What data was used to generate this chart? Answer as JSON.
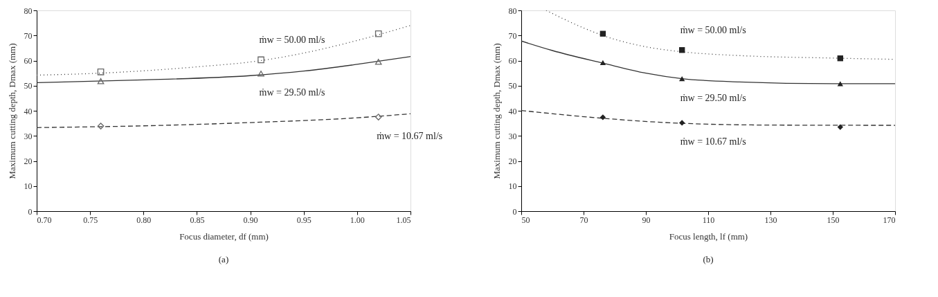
{
  "chart_data": [
    {
      "type": "scatter",
      "xlabel": "Focus diameter, df (mm)",
      "ylabel": "Maximum cutting depth, Dmax (mm)",
      "xlim": [
        0.7,
        1.05
      ],
      "xticks": [
        {
          "value": 0.7,
          "label": "0.70"
        },
        0.75,
        {
          "value": 0.8,
          "label": "0.80"
        },
        0.85,
        {
          "value": 0.9,
          "label": "0.90"
        },
        0.95,
        {
          "value": 1,
          "label": "1.00"
        },
        1.05
      ],
      "ylim": [
        0,
        80
      ],
      "yticks": [
        0,
        10,
        20,
        30,
        40,
        50,
        60,
        70,
        80
      ],
      "grid": false,
      "series": [
        {
          "type": "line",
          "line_style": "dotted",
          "color": "#333333",
          "x": [
            0.7,
            0.76,
            0.85,
            0.91,
            0.95,
            1.0,
            1.05
          ],
          "values": [
            54.2,
            55,
            57.5,
            60,
            63,
            68,
            74
          ]
        },
        {
          "type": "line",
          "line_style": "solid",
          "color": "#333333",
          "x": [
            0.7,
            0.8,
            0.9,
            0.95,
            1.0,
            1.05
          ],
          "values": [
            51.2,
            52.3,
            54,
            55.8,
            58.5,
            61.6
          ]
        },
        {
          "type": "line",
          "line_style": "dashed",
          "color": "#333333",
          "x": [
            0.7,
            0.8,
            0.9,
            1.0,
            1.05
          ],
          "values": [
            33.3,
            34,
            35.3,
            37.2,
            38.8
          ]
        },
        {
          "name": "ṁw = 50.00 ml/s",
          "marker": "square",
          "color": "#666666",
          "x": [
            0.76,
            0.91,
            1.02
          ],
          "values": [
            55.5,
            60.3,
            70.7
          ]
        },
        {
          "name": "ṁw = 29.50 ml/s",
          "marker": "triangle",
          "color": "#666666",
          "x": [
            0.76,
            0.91,
            1.02
          ],
          "values": [
            51.8,
            54.8,
            59.5
          ]
        },
        {
          "name": "ṁw = 10.67 ml/s",
          "marker": "diamond",
          "color": "#666666",
          "x": [
            0.76,
            1.02
          ],
          "values": [
            33.9,
            37.5
          ]
        }
      ],
      "annotations": [
        "(a)"
      ]
    },
    {
      "type": "scatter",
      "xlabel": "Focus length, lf (mm)",
      "ylabel": "Maximum cutting depth, Dmax (mm)",
      "xlim": [
        50,
        170
      ],
      "xticks": [
        50,
        70,
        90,
        110,
        130,
        150,
        170
      ],
      "ylim": [
        0,
        80
      ],
      "yticks": [
        0,
        10,
        20,
        30,
        40,
        50,
        60,
        70,
        80
      ],
      "grid": false,
      "series": [
        {
          "type": "line",
          "line_style": "dotted",
          "color": "#333333",
          "x": [
            58,
            70,
            76.2,
            90,
            101.6,
            120,
            150,
            170
          ],
          "values": [
            80,
            73,
            70,
            65.5,
            63.5,
            62,
            61,
            60.5
          ]
        },
        {
          "type": "line",
          "line_style": "solid",
          "color": "#333333",
          "x": [
            50,
            60,
            76.2,
            90,
            101.6,
            120,
            150,
            170
          ],
          "values": [
            67.8,
            64,
            59,
            55,
            52.8,
            51.5,
            50.8,
            50.8
          ]
        },
        {
          "type": "line",
          "line_style": "dashed",
          "color": "#333333",
          "x": [
            50,
            76.2,
            101.6,
            130,
            170
          ],
          "values": [
            40.1,
            37,
            35,
            34.3,
            34.2
          ]
        },
        {
          "name": "ṁw = 50.00 ml/s",
          "marker": "square",
          "color": "#222222",
          "x": [
            76.2,
            101.6,
            152.4
          ],
          "values": [
            70.7,
            64.2,
            60.9
          ]
        },
        {
          "name": "ṁw = 29.50 ml/s",
          "marker": "triangle",
          "color": "#222222",
          "x": [
            76.2,
            101.6,
            152.4
          ],
          "values": [
            59.2,
            52.8,
            50.8
          ]
        },
        {
          "name": "ṁw = 10.67 ml/s",
          "marker": "diamond",
          "color": "#222222",
          "x": [
            76.2,
            101.6,
            152.4
          ],
          "values": [
            37.4,
            35.2,
            33.5
          ]
        }
      ],
      "annotations": [
        "(b)"
      ]
    }
  ]
}
